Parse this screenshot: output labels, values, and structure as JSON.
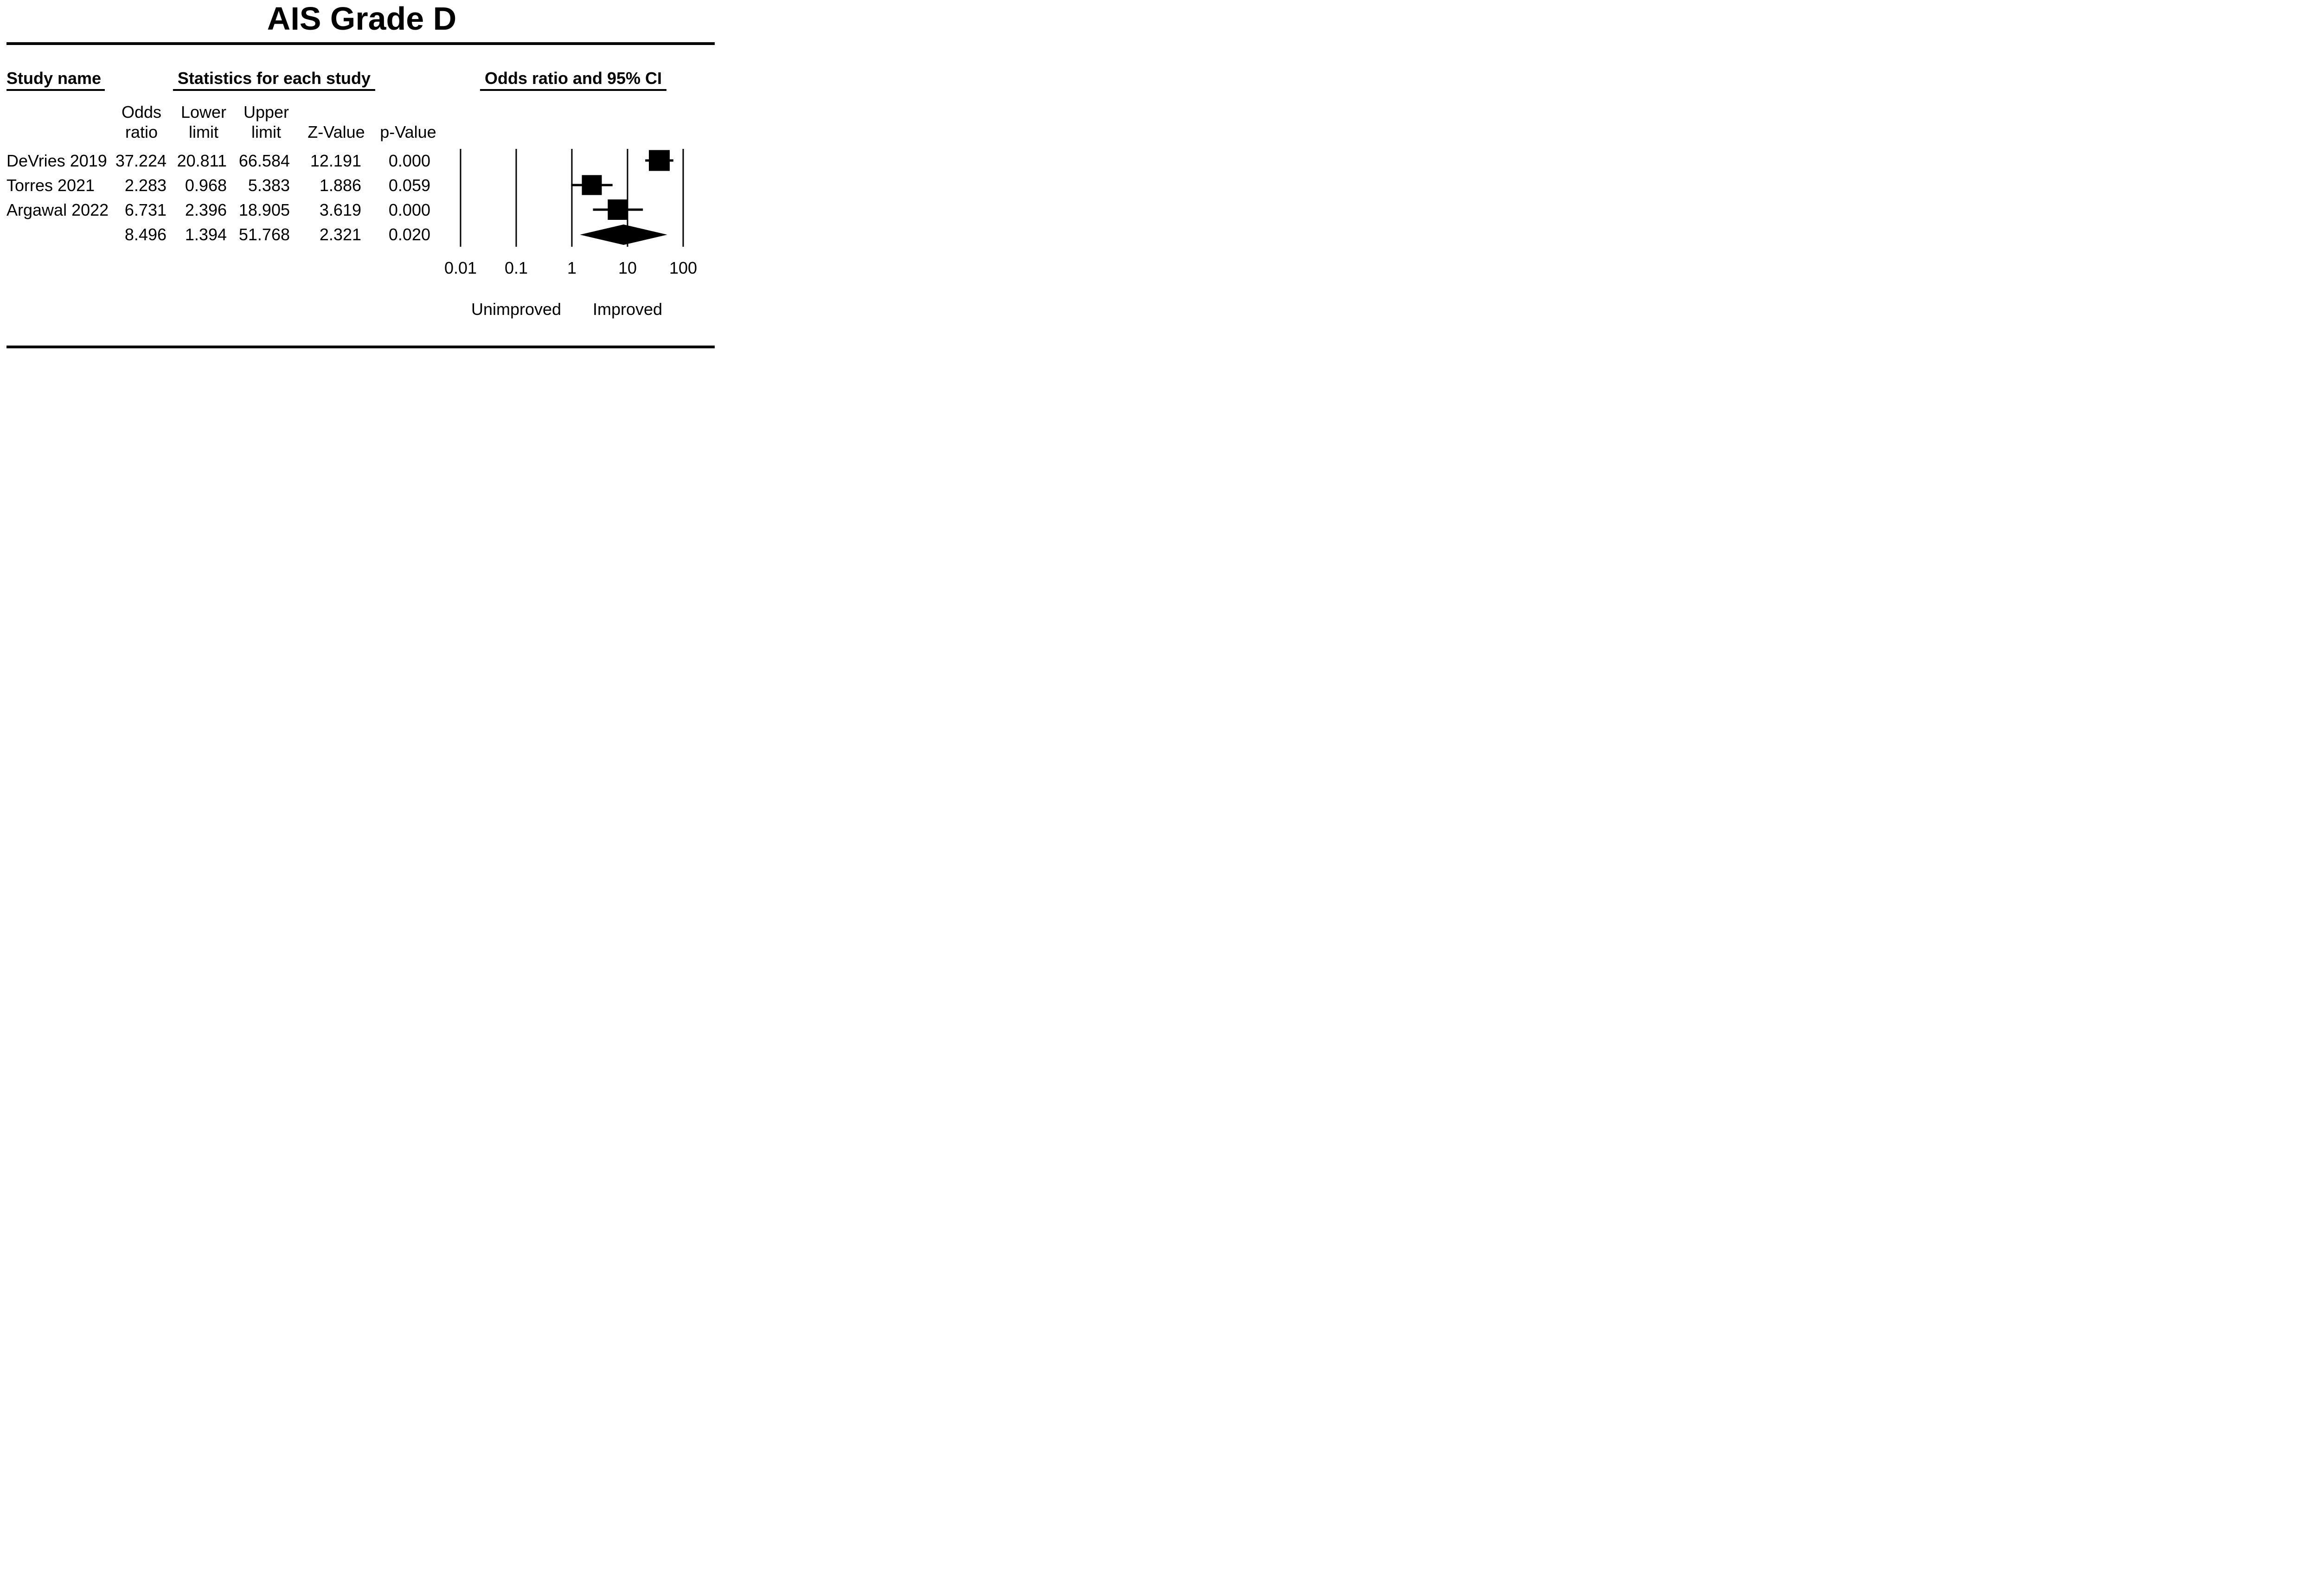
{
  "title": "AIS Grade D",
  "table": {
    "group_headers": {
      "study": "Study name",
      "statistics": "Statistics for each study",
      "plot": "Odds ratio and 95% CI"
    },
    "column_headers": [
      {
        "line1": "Odds",
        "line2": "ratio"
      },
      {
        "line1": "Lower",
        "line2": "limit"
      },
      {
        "line1": "Upper",
        "line2": "limit"
      },
      {
        "line1": "",
        "line2": "Z-Value"
      },
      {
        "line1": "",
        "line2": "p-Value"
      }
    ],
    "rows": [
      {
        "study": "DeVries 2019",
        "odds_ratio": "37.224",
        "lower_limit": "20.811",
        "upper_limit": "66.584",
        "z_value": "12.191",
        "p_value": "0.000",
        "is_summary": false
      },
      {
        "study": "Torres 2021",
        "odds_ratio": "2.283",
        "lower_limit": "0.968",
        "upper_limit": "5.383",
        "z_value": "1.886",
        "p_value": "0.059",
        "is_summary": false
      },
      {
        "study": "Argawal 2022",
        "odds_ratio": "6.731",
        "lower_limit": "2.396",
        "upper_limit": "18.905",
        "z_value": "3.619",
        "p_value": "0.000",
        "is_summary": false
      },
      {
        "study": "",
        "odds_ratio": "8.496",
        "lower_limit": "1.394",
        "upper_limit": "51.768",
        "z_value": "2.321",
        "p_value": "0.020",
        "is_summary": true
      }
    ]
  },
  "chart_data": {
    "type": "scatter",
    "variant": "forest_plot",
    "title": "Odds ratio and 95% CI",
    "x_scale": "log10",
    "xlim": [
      0.01,
      100
    ],
    "x_ticks": [
      0.01,
      0.1,
      1,
      10,
      100
    ],
    "x_tick_labels": [
      "0.01",
      "0.1",
      "1",
      "10",
      "100"
    ],
    "direction_labels": {
      "left": "Unimproved",
      "right": "Improved"
    },
    "grid": "vertical-reference-lines",
    "legend": "none",
    "studies": [
      {
        "name": "DeVries 2019",
        "odds_ratio": 37.224,
        "lower": 20.811,
        "upper": 66.584,
        "z": 12.191,
        "p": 0.0,
        "marker": "square",
        "marker_px": 45
      },
      {
        "name": "Torres 2021",
        "odds_ratio": 2.283,
        "lower": 0.968,
        "upper": 5.383,
        "z": 1.886,
        "p": 0.059,
        "marker": "square",
        "marker_px": 43
      },
      {
        "name": "Argawal 2022",
        "odds_ratio": 6.731,
        "lower": 2.396,
        "upper": 18.905,
        "z": 3.619,
        "p": 0.0,
        "marker": "square",
        "marker_px": 44
      },
      {
        "name": "",
        "odds_ratio": 8.496,
        "lower": 1.394,
        "upper": 51.768,
        "z": 2.321,
        "p": 0.02,
        "marker": "diamond",
        "marker_px": 44
      }
    ],
    "colors": {
      "foreground": "#000000",
      "background": "#ffffff"
    }
  }
}
